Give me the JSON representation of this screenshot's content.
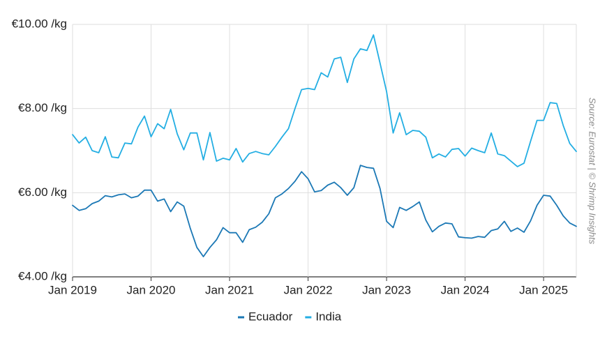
{
  "chart_data": {
    "type": "line",
    "x_start": "2019-01",
    "x_frequency": "monthly",
    "ylim": [
      4,
      10
    ],
    "y_ticks": [
      {
        "value": 4,
        "label": "€4.00 /kg"
      },
      {
        "value": 6,
        "label": "€6.00 /kg"
      },
      {
        "value": 8,
        "label": "€8.00 /kg"
      },
      {
        "value": 10,
        "label": "€10.00 /kg"
      }
    ],
    "x_ticks": [
      {
        "date": "2019-01",
        "label": "Jan 2019"
      },
      {
        "date": "2020-01",
        "label": "Jan 2020"
      },
      {
        "date": "2021-01",
        "label": "Jan 2021"
      },
      {
        "date": "2022-01",
        "label": "Jan 2022"
      },
      {
        "date": "2023-01",
        "label": "Jan 2023"
      },
      {
        "date": "2024-01",
        "label": "Jan 2024"
      },
      {
        "date": "2025-01",
        "label": "Jan 2025"
      }
    ],
    "grid": true,
    "legend_position": "bottom-center",
    "source_note": "Source: Eurostat | © Shrimp Insights",
    "series": [
      {
        "name": "Ecuador",
        "color": "#1b78b5",
        "values": [
          5.7,
          5.58,
          5.62,
          5.74,
          5.8,
          5.93,
          5.9,
          5.95,
          5.97,
          5.88,
          5.92,
          6.06,
          6.06,
          5.8,
          5.85,
          5.55,
          5.78,
          5.68,
          5.15,
          4.7,
          4.48,
          4.7,
          4.88,
          5.17,
          5.05,
          5.05,
          4.82,
          5.12,
          5.18,
          5.3,
          5.5,
          5.88,
          5.97,
          6.1,
          6.27,
          6.5,
          6.33,
          6.02,
          6.05,
          6.18,
          6.25,
          6.12,
          5.94,
          6.12,
          6.65,
          6.6,
          6.58,
          6.1,
          5.32,
          5.17,
          5.65,
          5.58,
          5.67,
          5.78,
          5.35,
          5.07,
          5.2,
          5.28,
          5.26,
          4.95,
          4.93,
          4.92,
          4.96,
          4.94,
          5.1,
          5.14,
          5.32,
          5.08,
          5.16,
          5.06,
          5.33,
          5.7,
          5.94,
          5.92,
          5.7,
          5.45,
          5.28,
          5.2
        ]
      },
      {
        "name": "India",
        "color": "#23aee3",
        "values": [
          7.38,
          7.18,
          7.32,
          7.0,
          6.95,
          7.33,
          6.85,
          6.83,
          7.18,
          7.16,
          7.56,
          7.82,
          7.33,
          7.64,
          7.52,
          7.98,
          7.4,
          7.02,
          7.42,
          7.42,
          6.78,
          7.43,
          6.75,
          6.82,
          6.78,
          7.05,
          6.73,
          6.93,
          6.98,
          6.93,
          6.9,
          7.1,
          7.32,
          7.52,
          8.0,
          8.45,
          8.48,
          8.45,
          8.85,
          8.75,
          9.18,
          9.22,
          8.62,
          9.18,
          9.42,
          9.38,
          9.75,
          9.08,
          8.4,
          7.42,
          7.9,
          7.38,
          7.48,
          7.46,
          7.32,
          6.83,
          6.92,
          6.85,
          7.03,
          7.05,
          6.87,
          7.06,
          7.0,
          6.95,
          7.42,
          6.92,
          6.88,
          6.75,
          6.62,
          6.7,
          7.22,
          7.72,
          7.72,
          8.14,
          8.12,
          7.6,
          7.17,
          6.98
        ]
      }
    ]
  }
}
